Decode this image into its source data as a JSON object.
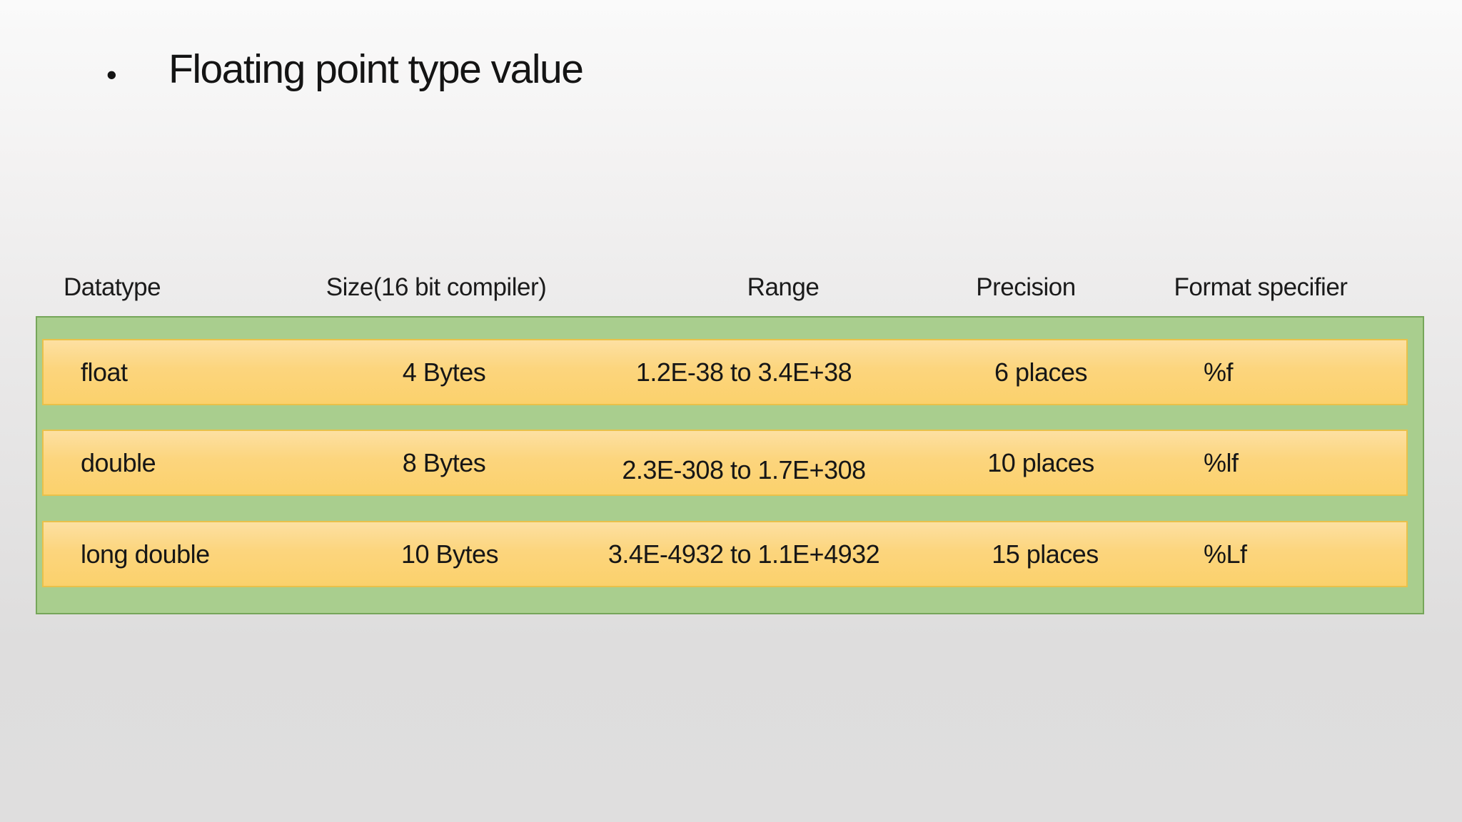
{
  "slide": {
    "bullet_glyph": "•",
    "title": "Floating point type value"
  },
  "table": {
    "headers": [
      "Datatype",
      "Size(16 bit compiler)",
      "Range",
      "Precision",
      "Format specifier"
    ],
    "rows": [
      {
        "datatype": "float",
        "size": "4 Bytes",
        "range": "1.2E-38 to 3.4E+38",
        "precision": "6 places",
        "format_specifier": "%f"
      },
      {
        "datatype": "double",
        "size": "8 Bytes",
        "range": "2.3E-308 to 1.7E+308",
        "precision": "10 places",
        "format_specifier": "%lf"
      },
      {
        "datatype": "long double",
        "size": "10 Bytes",
        "range": "3.4E-4932 to 1.1E+4932",
        "precision": "15 places",
        "format_specifier": "%Lf"
      }
    ]
  },
  "colors": {
    "container_fill": "#a9ce8e",
    "container_border": "#76a65a",
    "row_fill_top": "#fde0a2",
    "row_fill_bottom": "#fbd16c",
    "row_border": "#e9c14a",
    "background_top": "#fafafa",
    "background_bottom": "#dedddd",
    "text": "#161616"
  }
}
